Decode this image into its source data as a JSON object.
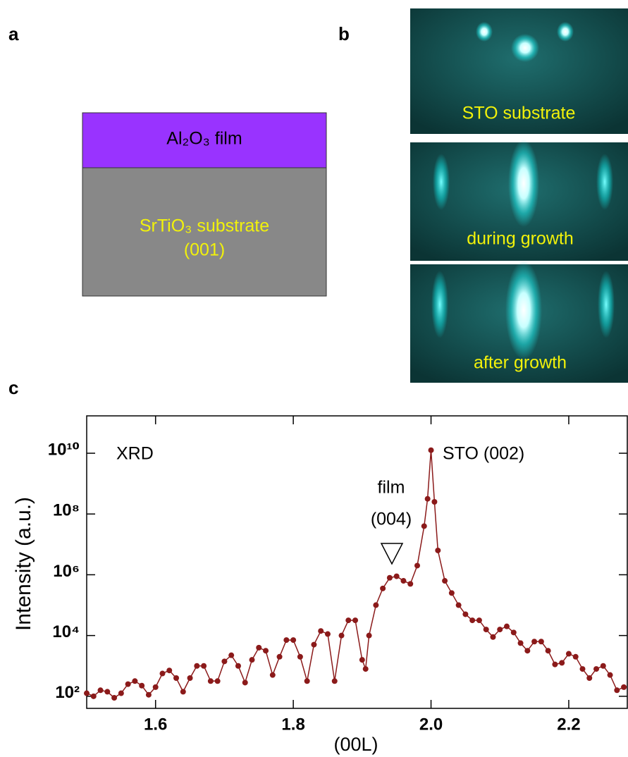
{
  "panel_labels": [
    "a",
    "b",
    "c"
  ],
  "diagram": {
    "film": "Al₂O₃ film",
    "substrate": "SrTiO₃ substrate",
    "orientation": "(001)"
  },
  "rheed": [
    "STO substrate",
    "during growth",
    "after growth"
  ],
  "chart_data": {
    "type": "line",
    "xlabel": "(00L)",
    "ylabel": "Intensity (a.u.)",
    "annotations": [
      "STO (002)",
      "film",
      "(004)"
    ],
    "x": [
      1.5,
      1.51,
      1.52,
      1.53,
      1.54,
      1.55,
      1.56,
      1.57,
      1.58,
      1.59,
      1.6,
      1.61,
      1.62,
      1.63,
      1.64,
      1.65,
      1.66,
      1.67,
      1.68,
      1.69,
      1.7,
      1.71,
      1.72,
      1.73,
      1.74,
      1.75,
      1.76,
      1.77,
      1.78,
      1.79,
      1.8,
      1.81,
      1.82,
      1.83,
      1.84,
      1.85,
      1.86,
      1.87,
      1.88,
      1.89,
      1.9,
      1.905,
      1.91,
      1.92,
      1.93,
      1.94,
      1.95,
      1.96,
      1.97,
      1.98,
      1.99,
      1.995,
      2.0,
      2.005,
      2.01,
      2.02,
      2.03,
      2.04,
      2.05,
      2.06,
      2.07,
      2.08,
      2.09,
      2.1,
      2.11,
      2.12,
      2.13,
      2.14,
      2.15,
      2.16,
      2.17,
      2.18,
      2.19,
      2.2,
      2.21,
      2.22,
      2.23,
      2.24,
      2.25,
      2.26,
      2.27,
      2.28
    ],
    "series": [
      {
        "name": "XRD",
        "color": "#8b1a1a",
        "values": [
          126,
          100,
          158,
          141,
          89,
          126,
          251,
          316,
          224,
          112,
          200,
          562,
          708,
          398,
          141,
          398,
          1000,
          1000,
          316,
          316,
          1410,
          2240,
          1000,
          282,
          1580,
          3980,
          3160,
          501,
          2000,
          7080,
          7080,
          2000,
          316,
          5010,
          14100,
          11200,
          316,
          10000,
          31600,
          31600,
          1580,
          794,
          10000,
          100000,
          355000,
          794000,
          891000,
          631000,
          501000,
          2000000,
          39800000,
          316000000,
          12600000000,
          251000000,
          6310000,
          631000,
          251000,
          100000,
          50100,
          31600,
          31600,
          15800,
          8910,
          15800,
          20000,
          12600,
          5620,
          3160,
          6310,
          6310,
          3160,
          1120,
          1260,
          2510,
          2000,
          794,
          398,
          794,
          1000,
          501,
          158,
          200
        ]
      }
    ],
    "xlim": [
      1.5,
      2.285
    ],
    "ylim": [
      40,
      170000000000
    ],
    "ylog": true,
    "xticks": [
      1.6,
      1.8,
      {
        "value": 2,
        "label": "2.0"
      },
      2.2
    ],
    "yticks": [
      {
        "value": 100,
        "label": "10²"
      },
      {
        "value": 10000,
        "label": "10⁴"
      },
      {
        "value": 1000000,
        "label": "10⁶"
      },
      {
        "value": 100000000,
        "label": "10⁸"
      },
      {
        "value": 10000000000,
        "label": "10¹⁰"
      }
    ]
  }
}
